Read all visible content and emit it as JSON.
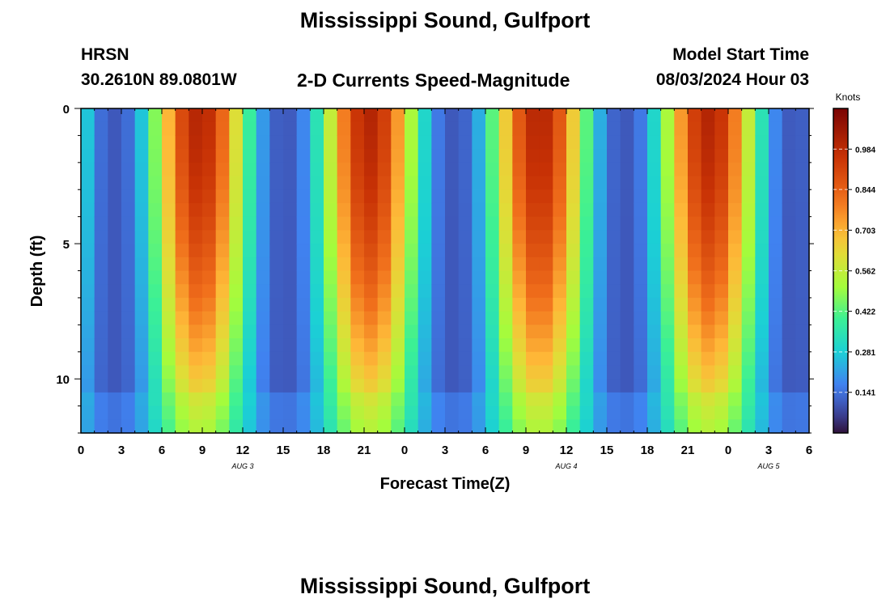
{
  "page": {
    "title": "Mississippi Sound, Gulfport",
    "footer_title": "Mississippi Sound, Gulfport",
    "station_id": "HRSN",
    "station_coords": "30.2610N  89.0801W",
    "subtitle": "2-D Currents Speed-Magnitude",
    "model_start_label": "Model Start Time",
    "model_start_value": "08/03/2024 Hour 03"
  },
  "chart_data": {
    "type": "heatmap",
    "xlabel": "Forecast Time(Z)",
    "ylabel": "Depth (ft)",
    "x_range_hours": [
      0,
      54
    ],
    "x_tick_labels": [
      "0",
      "3",
      "6",
      "9",
      "12",
      "15",
      "18",
      "21",
      "0",
      "3",
      "6",
      "9",
      "12",
      "15",
      "18",
      "21",
      "0",
      "3",
      "6"
    ],
    "date_labels": [
      {
        "label": "AUG 3",
        "hour": 12
      },
      {
        "label": "AUG 4",
        "hour": 36
      },
      {
        "label": "AUG 5",
        "hour": 51
      }
    ],
    "y_range_ft": [
      0,
      12
    ],
    "y_tick_labels": [
      "0",
      "5",
      "10"
    ],
    "colorbar": {
      "title": "Knots",
      "range": [
        0,
        1.125
      ],
      "tick_labels": [
        "0.984",
        "0.844",
        "0.703",
        "0.562",
        "0.422",
        "0.281",
        "0.141"
      ],
      "tick_values": [
        0.984,
        0.844,
        0.703,
        0.562,
        0.422,
        0.281,
        0.141
      ]
    },
    "grid": false
  }
}
